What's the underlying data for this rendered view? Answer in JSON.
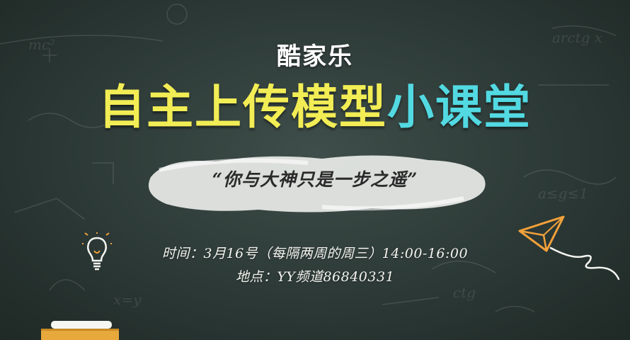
{
  "brand": "酷家乐",
  "headline": {
    "part1": "自主上传模型",
    "part2": "小课堂"
  },
  "quote": "“你与大神只是一步之遥”",
  "schedule": {
    "time_label": "时间：",
    "time_value": "3月16号（每隔两周的周三）14:00-16:00",
    "place_label": "地点：",
    "place_value": "YY频道86840331"
  },
  "colors": {
    "board": "#2c3936",
    "headline_yellow": "#f2ed55",
    "headline_cyan": "#52d9e2",
    "plane_orange": "#f3a13a",
    "chalk_white": "#f4f4f0"
  },
  "icons": [
    "lightbulb-icon",
    "paper-plane-icon",
    "chalk-icon"
  ]
}
